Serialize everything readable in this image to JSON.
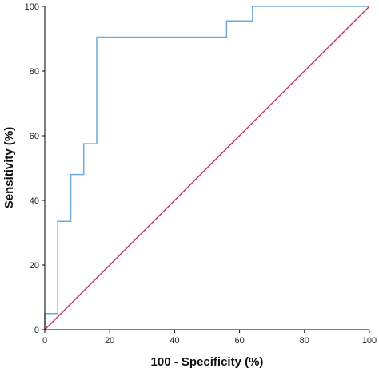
{
  "chart_data": {
    "type": "line",
    "title": "",
    "xlabel": "100 - Specificity (%)",
    "ylabel": "Sensitivity (%)",
    "xlim": [
      0,
      100
    ],
    "ylim": [
      0,
      100
    ],
    "x_ticks": [
      "0",
      "20",
      "40",
      "60",
      "80",
      "100"
    ],
    "y_ticks": [
      "0",
      "20",
      "40",
      "60",
      "80",
      "100"
    ],
    "grid": false,
    "legend": "none",
    "series": [
      {
        "step": true,
        "color": "#6fa8dc",
        "x": [
          0,
          0,
          4,
          4,
          8,
          8,
          12,
          12,
          16,
          16,
          56,
          56,
          64,
          64,
          100
        ],
        "y": [
          0,
          5,
          5,
          33.5,
          33.5,
          48,
          48,
          57.5,
          57.5,
          90.5,
          90.5,
          95.5,
          95.5,
          100,
          100
        ]
      },
      {
        "color": "#c8385c",
        "x": [
          0,
          100
        ],
        "y": [
          0,
          100
        ]
      }
    ]
  }
}
